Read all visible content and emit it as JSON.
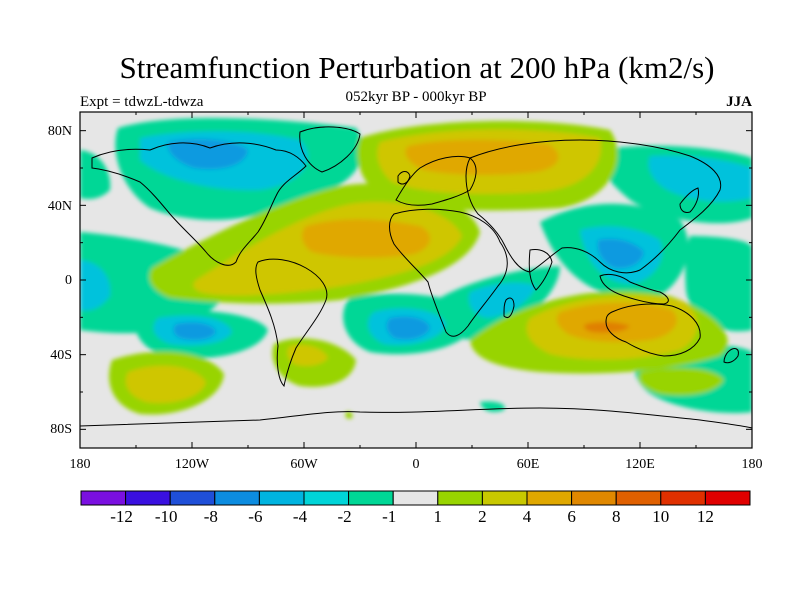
{
  "header": {
    "title": "Streamfunction Perturbation at 200 hPa (km2/s)",
    "subtitle": "052kyr BP - 000kyr BP",
    "left_label": "Expt = tdwzL-tdwza",
    "right_label": "JJA"
  },
  "axes": {
    "lat_labels": [
      "80N",
      "40N",
      "0",
      "40S",
      "80S"
    ],
    "lon_labels": [
      "180",
      "120W",
      "60W",
      "0",
      "60E",
      "120E",
      "180"
    ]
  },
  "colorbar": {
    "colors": [
      "#7a10e0",
      "#3a10e0",
      "#1f4fd8",
      "#0c8ce0",
      "#00b4e0",
      "#00d4d8",
      "#00d796",
      "#e6e6e6",
      "#98d400",
      "#c8c800",
      "#e0a800",
      "#e08800",
      "#e06000",
      "#e03000",
      "#e00000"
    ],
    "labels": [
      "-12",
      "-10",
      "-8",
      "-6",
      "-4",
      "-2",
      "-1",
      "1",
      "2",
      "4",
      "6",
      "8",
      "10",
      "12"
    ]
  },
  "field": {
    "background_color": "#e6e6e6",
    "coastline_color": "#000000"
  }
}
